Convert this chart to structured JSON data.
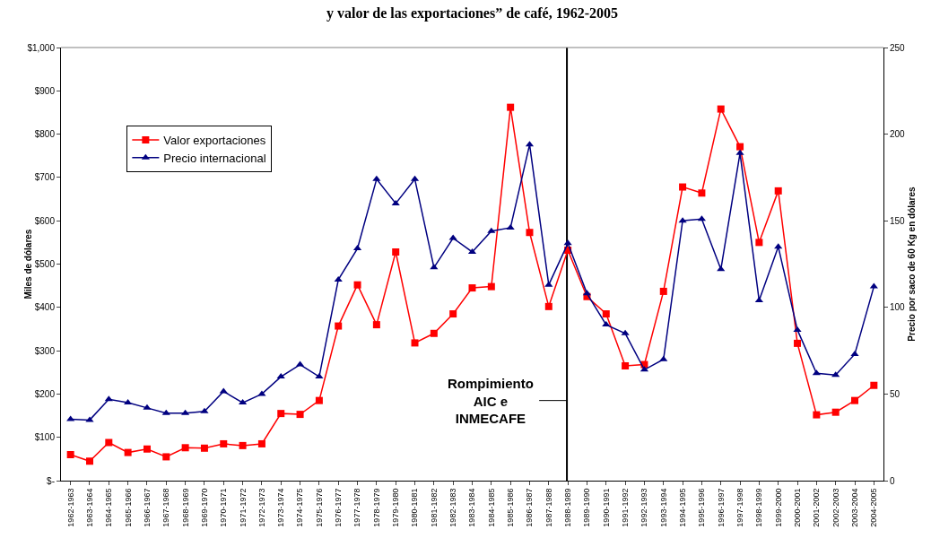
{
  "chart_data": {
    "type": "line",
    "title": "y valor de las exportaciones” de café, 1962-2005",
    "ylabel": "Miles de dólares",
    "y2label": "Precio por saco de 60 Kg en dólares",
    "categories": [
      "1962-1963",
      "1963-1964",
      "1964-1965",
      "1965-1966",
      "1966-1967",
      "1967-1968",
      "1968-1969",
      "1969-1970",
      "1970-1971",
      "1971-1972",
      "1972-1973",
      "1973-1974",
      "1974-1975",
      "1975-1976",
      "1976-1977",
      "1977-1978",
      "1978-1979",
      "1979-1980",
      "1980-1981",
      "1981-1982",
      "1982-1983",
      "1983-1984",
      "1984-1985",
      "1985-1986",
      "1986-1987",
      "1987-1988",
      "1988-1989",
      "1989-1990",
      "1990-1991",
      "1991-1992",
      "1992-1993",
      "1993-1994",
      "1994-1995",
      "1995-1996",
      "1996-1997",
      "1997-1998",
      "1998-1999",
      "1999-2000",
      "2000-2001",
      "2001-2002",
      "2002-2003",
      "2003-2004",
      "2004-2005"
    ],
    "series": [
      {
        "name": "Valor exportaciones",
        "color": "#ff0000",
        "marker": "square",
        "values": [
          60,
          45,
          88,
          65,
          73,
          55,
          76,
          75,
          85,
          81,
          85,
          155,
          153,
          185,
          357,
          452,
          360,
          528,
          318,
          340,
          385,
          445,
          448,
          862,
          573,
          402,
          532,
          425,
          385,
          265,
          268,
          437,
          678,
          664,
          858,
          771,
          550,
          669,
          317,
          152,
          158,
          185,
          220
        ]
      },
      {
        "name": "Precio internacional",
        "color": "#000080",
        "marker": "triangle",
        "axis": "y2",
        "values": [
          35.5,
          35,
          47,
          45,
          42,
          39,
          39,
          40,
          51.5,
          45,
          50,
          60,
          67,
          60,
          116,
          134,
          174,
          160,
          174,
          123,
          140,
          132,
          144,
          146,
          194,
          113,
          137,
          108,
          90,
          85,
          64,
          70,
          150,
          151,
          122,
          189,
          104,
          135,
          87,
          62,
          61,
          73,
          112
        ]
      }
    ],
    "ylim": [
      0,
      1000
    ],
    "yticks": [
      {
        "value": 0,
        "label": "$-"
      },
      {
        "value": 100,
        "label": "$100"
      },
      {
        "value": 200,
        "label": "$200"
      },
      {
        "value": 300,
        "label": "$300"
      },
      {
        "value": 400,
        "label": "$400"
      },
      {
        "value": 500,
        "label": "$500"
      },
      {
        "value": 600,
        "label": "$600"
      },
      {
        "value": 700,
        "label": "$700"
      },
      {
        "value": 800,
        "label": "$800"
      },
      {
        "value": 900,
        "label": "$900"
      },
      {
        "value": 1000,
        "label": "$1,000"
      }
    ],
    "y2lim": [
      0,
      250
    ],
    "y2ticks": [
      0,
      50,
      100,
      150,
      200,
      250
    ],
    "ref_lines": [
      {
        "axis": "x",
        "value": "1988-1989",
        "label": "Rompimiento\nAIC e\nINMECAFE",
        "color": "#000000",
        "line_style": "solid"
      }
    ],
    "grid": false,
    "legend": "top left",
    "line_style": "solid"
  }
}
